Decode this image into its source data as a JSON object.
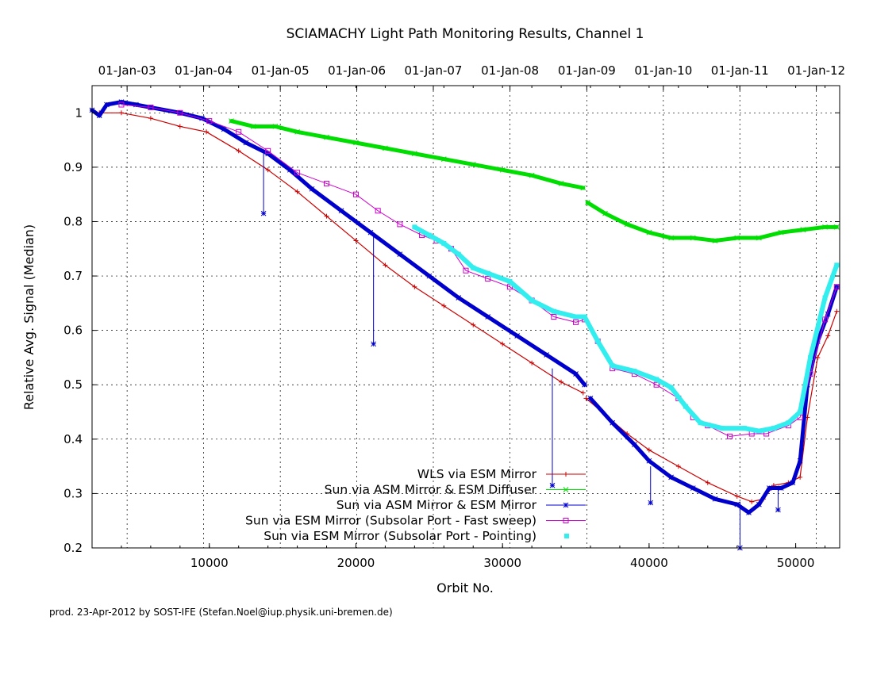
{
  "chart_data": {
    "type": "line",
    "title": "SCIAMACHY Light Path Monitoring Results, Channel 1",
    "xlabel": "Orbit No.",
    "ylabel": "Relative Avg. Signal (Median)",
    "xlim": [
      2000,
      53000
    ],
    "ylim": [
      0.2,
      1.05
    ],
    "grid": true,
    "legend_placement": "bottom-center",
    "x_ticks": [
      10000,
      20000,
      30000,
      40000,
      50000
    ],
    "x_tick_labels": [
      "10000",
      "20000",
      "30000",
      "40000",
      "50000"
    ],
    "y_ticks": [
      0.2,
      0.3,
      0.4,
      0.5,
      0.6,
      0.7,
      0.8,
      0.9,
      1.0
    ],
    "y_tick_labels": [
      "0.2",
      "0.3",
      "0.4",
      "0.5",
      "0.6",
      "0.7",
      "0.8",
      "0.9",
      "1"
    ],
    "top_axis": {
      "labels": [
        "01-Jan-03",
        "01-Jan-04",
        "01-Jan-05",
        "01-Jan-06",
        "01-Jan-07",
        "01-Jan-08",
        "01-Jan-09",
        "01-Jan-10",
        "01-Jan-11",
        "01-Jan-12"
      ],
      "orbits": [
        4390,
        9610,
        14840,
        20060,
        25280,
        30510,
        35750,
        40970,
        46190,
        51410
      ]
    },
    "series": [
      {
        "name": "WLS via ESM Mirror",
        "color": "#cc0000",
        "marker": "plus",
        "x": [
          2500,
          4000,
          6000,
          8000,
          9800,
          12000,
          14000,
          16000,
          18000,
          20000,
          22000,
          24000,
          26000,
          28000,
          30000,
          32000,
          34000,
          35500,
          35700,
          37000,
          38500,
          40000,
          42000,
          44000,
          46000,
          47000,
          47800,
          48500,
          49500,
          50300,
          50800,
          51500,
          52200,
          52800
        ],
        "y": [
          1.0,
          1.0,
          0.99,
          0.975,
          0.965,
          0.93,
          0.895,
          0.855,
          0.81,
          0.765,
          0.72,
          0.68,
          0.645,
          0.61,
          0.575,
          0.54,
          0.505,
          0.485,
          0.475,
          0.445,
          0.41,
          0.38,
          0.35,
          0.32,
          0.295,
          0.285,
          0.29,
          0.315,
          0.32,
          0.33,
          0.44,
          0.55,
          0.59,
          0.635
        ]
      },
      {
        "name": "Sun via ASM Mirror & ESM Diffuser",
        "color": "#00dd00",
        "marker": "x",
        "x": [
          11500,
          13000,
          14500,
          16000,
          18000,
          20000,
          22000,
          24000,
          26000,
          28000,
          30000,
          32000,
          34000,
          35500,
          35800,
          37000,
          38500,
          40000,
          41500,
          43000,
          44500,
          46000,
          47500,
          49000,
          50500,
          52000,
          52800
        ],
        "y": [
          0.985,
          0.975,
          0.975,
          0.965,
          0.955,
          0.945,
          0.935,
          0.925,
          0.915,
          0.905,
          0.895,
          0.885,
          0.87,
          0.862,
          0.835,
          0.815,
          0.795,
          0.78,
          0.77,
          0.77,
          0.765,
          0.77,
          0.77,
          0.78,
          0.785,
          0.79,
          0.79
        ]
      },
      {
        "name": "Sun via ASM Mirror & ESM Mirror",
        "color": "#0000cc",
        "marker": "star",
        "x": [
          2000,
          2500,
          3000,
          4000,
          5000,
          6000,
          8000,
          9500,
          11000,
          12500,
          14000,
          15500,
          17000,
          19000,
          21000,
          23000,
          25000,
          27000,
          29000,
          31000,
          33000,
          35000,
          35600,
          36000,
          37500,
          39000,
          40000,
          41500,
          43000,
          44500,
          46000,
          46800,
          47500,
          48200,
          49000,
          49800,
          50300,
          50800,
          51500,
          52200,
          52800
        ],
        "y": [
          1.005,
          0.995,
          1.015,
          1.02,
          1.015,
          1.01,
          1.0,
          0.99,
          0.97,
          0.945,
          0.925,
          0.895,
          0.86,
          0.82,
          0.78,
          0.74,
          0.7,
          0.66,
          0.625,
          0.59,
          0.555,
          0.52,
          0.5,
          0.475,
          0.43,
          0.39,
          0.36,
          0.33,
          0.31,
          0.29,
          0.28,
          0.265,
          0.28,
          0.31,
          0.31,
          0.32,
          0.36,
          0.5,
          0.58,
          0.63,
          0.68
        ]
      },
      {
        "name": "Sun via ESM Mirror (Subsolar Port - Fast sweep)",
        "color": "#cc00cc",
        "marker": "square",
        "x": [
          4000,
          6000,
          8000,
          10000,
          12000,
          14000,
          16000,
          18000,
          20000,
          21500,
          23000,
          24500,
          25500,
          26500,
          27500,
          29000,
          30500,
          32000,
          33500,
          35000,
          35600,
          36500,
          37500,
          39000,
          40500,
          42000,
          43000,
          44000,
          45500,
          47000,
          48000,
          49500,
          50300,
          51000,
          52000,
          52800
        ],
        "y": [
          1.015,
          1.01,
          1.0,
          0.985,
          0.965,
          0.93,
          0.89,
          0.87,
          0.85,
          0.82,
          0.795,
          0.775,
          0.765,
          0.75,
          0.71,
          0.695,
          0.68,
          0.655,
          0.625,
          0.615,
          0.62,
          0.58,
          0.53,
          0.52,
          0.5,
          0.475,
          0.44,
          0.425,
          0.405,
          0.41,
          0.41,
          0.425,
          0.44,
          0.52,
          0.62,
          0.68
        ]
      },
      {
        "name": "Sun via ESM Mirror (Subsolar Port - Pointing)",
        "color": "#33eeee",
        "marker": "filled-square",
        "x": [
          24000,
          25000,
          26000,
          27000,
          28000,
          29000,
          30500,
          32000,
          33500,
          35000,
          35600,
          36500,
          37500,
          39000,
          40500,
          41500,
          42500,
          43500,
          45000,
          46500,
          47500,
          48500,
          49500,
          50300,
          51000,
          52000,
          52800
        ],
        "y": [
          0.79,
          0.775,
          0.76,
          0.74,
          0.715,
          0.705,
          0.69,
          0.655,
          0.635,
          0.625,
          0.625,
          0.58,
          0.535,
          0.525,
          0.51,
          0.495,
          0.46,
          0.43,
          0.42,
          0.42,
          0.415,
          0.42,
          0.43,
          0.45,
          0.55,
          0.66,
          0.72
        ]
      }
    ],
    "spikes": [
      {
        "series": "Sun via ASM Mirror & ESM Mirror",
        "x": 13700,
        "y_from": 0.925,
        "y_to": 0.815
      },
      {
        "series": "Sun via ASM Mirror & ESM Mirror",
        "x": 21200,
        "y_from": 0.775,
        "y_to": 0.575
      },
      {
        "series": "Sun via ASM Mirror & ESM Mirror",
        "x": 33400,
        "y_from": 0.53,
        "y_to": 0.315
      },
      {
        "series": "Sun via ASM Mirror & ESM Mirror",
        "x": 40100,
        "y_from": 0.35,
        "y_to": 0.283
      },
      {
        "series": "Sun via ASM Mirror & ESM Mirror",
        "x": 46200,
        "y_from": 0.285,
        "y_to": 0.2
      },
      {
        "series": "Sun via ASM Mirror & ESM Mirror",
        "x": 48800,
        "y_from": 0.31,
        "y_to": 0.27
      }
    ]
  },
  "footer": {
    "credit": "prod. 23-Apr-2012 by SOST-IFE (Stefan.Noel@iup.physik.uni-bremen.de)"
  }
}
